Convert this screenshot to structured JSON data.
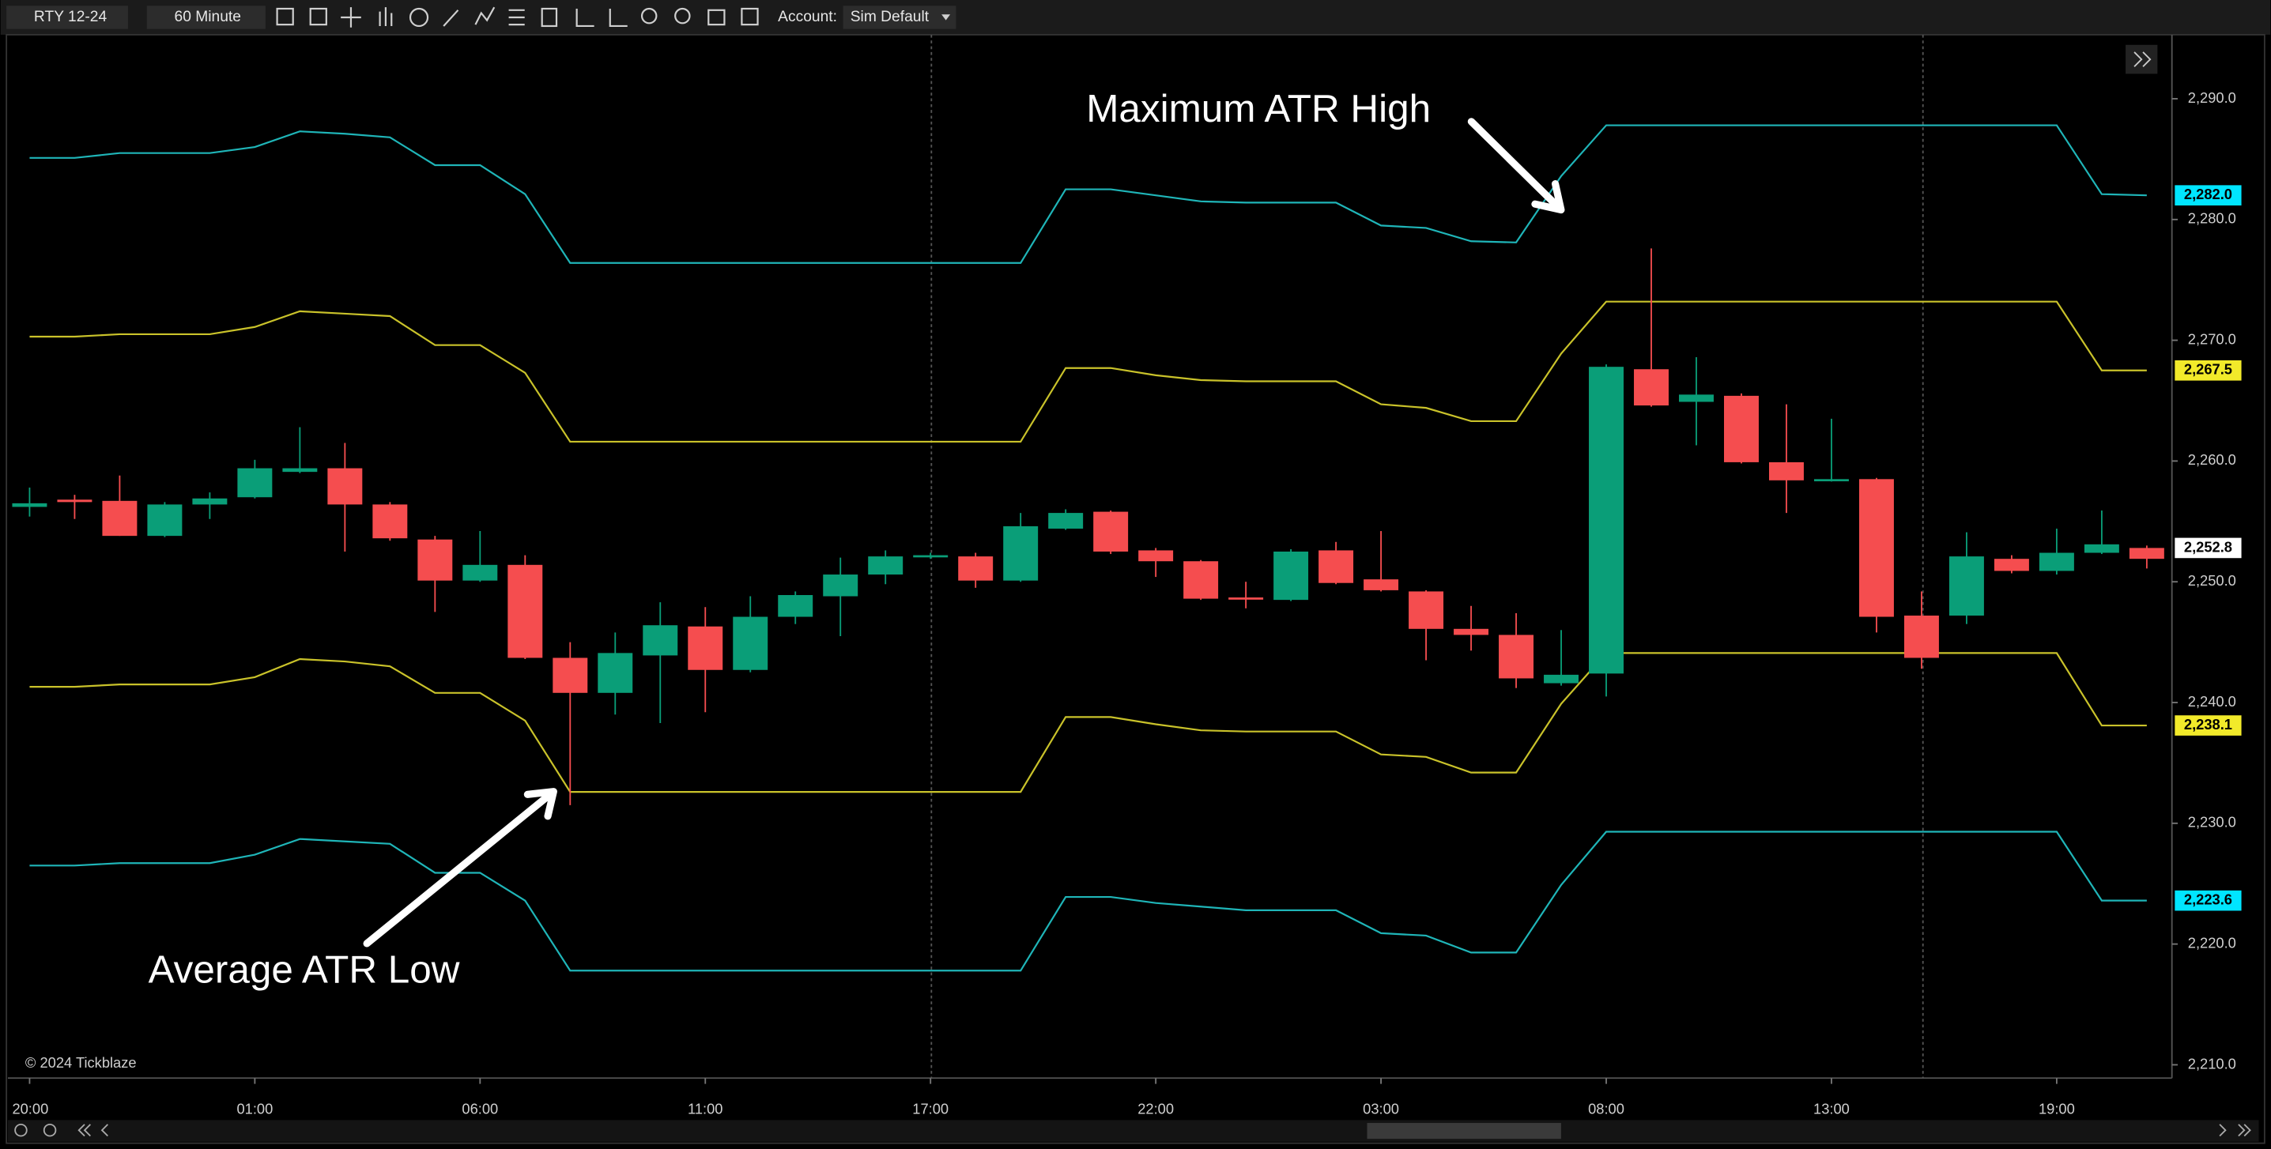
{
  "toolbar": {
    "symbol": "RTY 12-24",
    "interval": "60 Minute",
    "account_label": "Account:",
    "account": "Sim Default"
  },
  "chart_data": {
    "type": "candlestick",
    "categories": [
      "20:00",
      null,
      null,
      null,
      null,
      "01:00",
      null,
      null,
      null,
      null,
      "06:00",
      null,
      null,
      null,
      null,
      "11:00",
      null,
      null,
      null,
      null,
      "17:00",
      null,
      null,
      null,
      null,
      "22:00",
      null,
      null,
      null,
      null,
      "03:00",
      null,
      null,
      null,
      null,
      "08:00",
      null,
      null,
      null,
      null,
      "13:00",
      null,
      null,
      null,
      null,
      "19:00",
      null,
      null
    ],
    "open": [
      2256.2,
      2256.8,
      2256.7,
      2253.8,
      2256.4,
      2257.0,
      2259.1,
      2259.4,
      2256.4,
      2253.5,
      2250.1,
      2251.4,
      2243.7,
      2240.8,
      2243.9,
      2246.3,
      2242.7,
      2247.1,
      2248.8,
      2250.6,
      2252.1,
      2252.1,
      2250.1,
      2254.4,
      2255.8,
      2252.6,
      2251.7,
      2248.7,
      2248.5,
      2252.6,
      2250.2,
      2249.2,
      2246.1,
      2245.6,
      2241.6,
      2242.4,
      2267.6,
      2264.9,
      2265.4,
      2259.9,
      2258.4,
      2258.5,
      2247.2,
      2247.2,
      2251.9,
      2250.9,
      2252.4,
      2252.8
    ],
    "high": [
      2257.8,
      2257.2,
      2258.8,
      2256.6,
      2257.4,
      2260.1,
      2262.8,
      2261.5,
      2256.6,
      2253.8,
      2254.2,
      2252.2,
      2245.0,
      2245.8,
      2248.3,
      2247.9,
      2248.8,
      2249.2,
      2252.0,
      2252.6,
      2252.4,
      2252.4,
      2255.7,
      2256.0,
      2255.9,
      2252.8,
      2251.8,
      2250.0,
      2252.7,
      2253.3,
      2254.2,
      2249.3,
      2248.0,
      2247.4,
      2246.0,
      2268.0,
      2277.6,
      2268.6,
      2265.6,
      2264.7,
      2263.5,
      2258.6,
      2249.2,
      2254.1,
      2252.2,
      2254.4,
      2255.9,
      2253.0
    ],
    "low": [
      2255.4,
      2255.2,
      2253.8,
      2253.7,
      2255.2,
      2256.9,
      2259.0,
      2252.5,
      2253.4,
      2247.5,
      2250.0,
      2243.6,
      2231.5,
      2239.0,
      2238.3,
      2239.2,
      2242.5,
      2246.5,
      2245.5,
      2249.8,
      2251.9,
      2249.5,
      2250.0,
      2254.3,
      2252.3,
      2250.4,
      2248.5,
      2247.8,
      2248.4,
      2249.8,
      2249.2,
      2243.5,
      2244.3,
      2241.2,
      2241.4,
      2240.5,
      2264.5,
      2261.3,
      2259.8,
      2255.7,
      2258.3,
      2245.8,
      2242.8,
      2246.5,
      2250.7,
      2250.6,
      2252.3,
      2251.1
    ],
    "close": [
      2256.5,
      2256.6,
      2253.8,
      2256.4,
      2256.9,
      2259.4,
      2259.4,
      2256.4,
      2253.6,
      2250.1,
      2251.4,
      2243.7,
      2240.8,
      2244.1,
      2246.4,
      2242.7,
      2247.1,
      2248.9,
      2250.6,
      2252.1,
      2252.2,
      2250.1,
      2254.6,
      2255.7,
      2252.5,
      2251.7,
      2248.6,
      2248.6,
      2252.5,
      2249.9,
      2249.3,
      2246.1,
      2245.6,
      2242.0,
      2242.3,
      2267.8,
      2264.6,
      2265.5,
      2259.9,
      2258.4,
      2258.5,
      2247.1,
      2243.7,
      2252.1,
      2250.9,
      2252.4,
      2253.1,
      2251.9
    ],
    "up_color": "#0a9e78",
    "down_color": "#f54d4f",
    "series": [
      {
        "color": "#1fb5b8",
        "values": [
          2285.1,
          2285.1,
          2285.5,
          2285.5,
          2285.5,
          2286.0,
          2287.3,
          2287.1,
          2286.8,
          2284.5,
          2284.5,
          2282.1,
          2276.4,
          2276.4,
          2276.4,
          2276.4,
          2276.4,
          2276.4,
          2276.4,
          2276.4,
          2276.4,
          2276.4,
          2276.4,
          2282.5,
          2282.5,
          2282.0,
          2281.5,
          2281.4,
          2281.4,
          2281.4,
          2279.5,
          2279.3,
          2278.2,
          2278.1,
          2283.6,
          2287.8,
          2287.8,
          2287.8,
          2287.8,
          2287.8,
          2287.8,
          2287.8,
          2287.8,
          2287.8,
          2287.8,
          2287.8,
          2282.1,
          2282.0
        ]
      },
      {
        "color": "#c9c22a",
        "values": [
          2270.3,
          2270.3,
          2270.5,
          2270.5,
          2270.5,
          2271.1,
          2272.4,
          2272.2,
          2272.0,
          2269.6,
          2269.6,
          2267.3,
          2261.6,
          2261.6,
          2261.6,
          2261.6,
          2261.6,
          2261.6,
          2261.6,
          2261.6,
          2261.6,
          2261.6,
          2261.6,
          2267.7,
          2267.7,
          2267.1,
          2266.7,
          2266.6,
          2266.6,
          2266.6,
          2264.7,
          2264.4,
          2263.3,
          2263.3,
          2268.9,
          2273.2,
          2273.2,
          2273.2,
          2273.2,
          2273.2,
          2273.2,
          2273.2,
          2273.2,
          2273.2,
          2273.2,
          2273.2,
          2267.5,
          2267.5
        ]
      },
      {
        "color": "#c9c22a",
        "values": [
          2241.3,
          2241.3,
          2241.5,
          2241.5,
          2241.5,
          2242.1,
          2243.6,
          2243.4,
          2243.0,
          2240.8,
          2240.8,
          2238.5,
          2232.6,
          2232.6,
          2232.6,
          2232.6,
          2232.6,
          2232.6,
          2232.6,
          2232.6,
          2232.6,
          2232.6,
          2232.6,
          2238.8,
          2238.8,
          2238.2,
          2237.7,
          2237.6,
          2237.6,
          2237.6,
          2235.7,
          2235.5,
          2234.2,
          2234.2,
          2239.9,
          2244.1,
          2244.1,
          2244.1,
          2244.1,
          2244.1,
          2244.1,
          2244.1,
          2244.1,
          2244.1,
          2244.1,
          2244.1,
          2238.1,
          2238.1
        ]
      },
      {
        "color": "#1fb5b8",
        "values": [
          2226.5,
          2226.5,
          2226.7,
          2226.7,
          2226.7,
          2227.4,
          2228.7,
          2228.5,
          2228.3,
          2225.9,
          2225.9,
          2223.6,
          2217.8,
          2217.8,
          2217.8,
          2217.8,
          2217.8,
          2217.8,
          2217.8,
          2217.8,
          2217.8,
          2217.8,
          2217.8,
          2223.9,
          2223.9,
          2223.4,
          2223.1,
          2222.8,
          2222.8,
          2222.8,
          2220.9,
          2220.7,
          2219.3,
          2219.3,
          2224.9,
          2229.3,
          2229.3,
          2229.3,
          2229.3,
          2229.3,
          2229.3,
          2229.3,
          2229.3,
          2229.3,
          2229.3,
          2229.3,
          2223.6,
          2223.6
        ]
      }
    ],
    "ylim": [
      2208.9,
      2295.3
    ],
    "yticks": [
      {
        "value": 2210,
        "label": "2,210.0"
      },
      {
        "value": 2220,
        "label": "2,220.0"
      },
      {
        "value": 2230,
        "label": "2,230.0"
      },
      {
        "value": 2240,
        "label": "2,240.0"
      },
      {
        "value": 2250,
        "label": "2,250.0"
      },
      {
        "value": 2260,
        "label": "2,260.0"
      },
      {
        "value": 2270,
        "label": "2,270.0"
      },
      {
        "value": 2280,
        "label": "2,280.0"
      },
      {
        "value": 2290,
        "label": "2,290.0"
      }
    ],
    "price_labels": [
      {
        "value": 2282.0,
        "label": "2,282.0",
        "color": "#00e5ff"
      },
      {
        "value": 2267.5,
        "label": "2,267.5",
        "color": "#f2ea2a"
      },
      {
        "value": 2252.8,
        "label": "2,252.8",
        "color": "#ffffff"
      },
      {
        "value": 2238.1,
        "label": "2,238.1",
        "color": "#f2ea2a"
      },
      {
        "value": 2223.6,
        "label": "2,223.6",
        "color": "#00e5ff"
      }
    ],
    "annotations": [
      {
        "text": "Maximum ATR High"
      },
      {
        "text": "Average ATR Low"
      }
    ],
    "watermark": "© 2024 Tickblaze"
  }
}
